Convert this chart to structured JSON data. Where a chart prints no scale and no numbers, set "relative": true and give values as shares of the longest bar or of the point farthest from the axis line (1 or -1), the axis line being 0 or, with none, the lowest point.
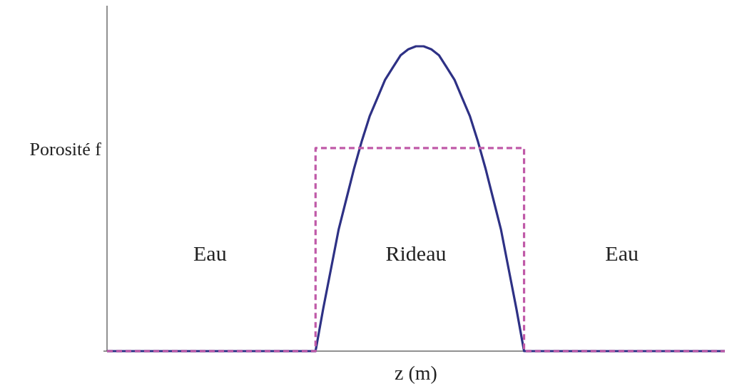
{
  "chart_data": {
    "type": "line",
    "relative": true,
    "xlabel": "z (m)",
    "ylabel": "Porosité f",
    "categories": [
      null,
      null,
      null,
      null,
      null,
      null,
      null,
      null,
      null,
      null,
      null,
      null,
      null,
      null,
      null,
      null,
      null,
      null,
      null,
      null,
      null,
      null,
      null,
      null,
      null,
      null,
      null,
      null,
      null,
      null,
      null,
      null,
      null,
      null,
      null,
      null,
      null,
      null,
      null,
      null,
      null,
      null,
      null,
      null,
      null,
      null,
      null,
      null,
      null,
      null,
      null,
      null,
      null,
      null,
      null,
      null,
      null,
      null,
      null,
      null,
      null,
      null,
      null,
      null,
      null,
      null,
      null,
      null,
      null,
      null,
      null,
      null,
      null,
      null,
      null,
      null,
      null,
      null,
      null,
      null,
      null
    ],
    "series": [
      {
        "color": "#2e3185",
        "line_style": "solid",
        "values": [
          0,
          0,
          0,
          0,
          0,
          0,
          0,
          0,
          0,
          0,
          0,
          0,
          0,
          0,
          0,
          0,
          0,
          0,
          0,
          0,
          0,
          0,
          0,
          0,
          0,
          0,
          0,
          0,
          0.14,
          0.27,
          0.4,
          0.5,
          0.6,
          0.69,
          0.77,
          0.83,
          0.89,
          0.93,
          0.97,
          0.99,
          1.0,
          1.0,
          0.99,
          0.97,
          0.93,
          0.89,
          0.83,
          0.77,
          0.69,
          0.6,
          0.5,
          0.4,
          0.27,
          0.14,
          0,
          0,
          0,
          0,
          0,
          0,
          0,
          0,
          0,
          0,
          0,
          0,
          0,
          0,
          0,
          0,
          0,
          0,
          0,
          0,
          0,
          0,
          0,
          0,
          0,
          0,
          0
        ]
      },
      {
        "type": "step",
        "color": "#c05aa8",
        "line_style": "dashed",
        "values": [
          0,
          0,
          0,
          0,
          0,
          0,
          0,
          0,
          0,
          0,
          0,
          0,
          0,
          0,
          0,
          0,
          0,
          0,
          0,
          0,
          0,
          0,
          0,
          0,
          0,
          0,
          0,
          0.666,
          0.666,
          0.666,
          0.666,
          0.666,
          0.666,
          0.666,
          0.666,
          0.666,
          0.666,
          0.666,
          0.666,
          0.666,
          0.666,
          0.666,
          0.666,
          0.666,
          0.666,
          0.666,
          0.666,
          0.666,
          0.666,
          0.666,
          0.666,
          0.666,
          0.666,
          0.666,
          0,
          0,
          0,
          0,
          0,
          0,
          0,
          0,
          0,
          0,
          0,
          0,
          0,
          0,
          0,
          0,
          0,
          0,
          0,
          0,
          0,
          0,
          0,
          0,
          0,
          0,
          0
        ]
      }
    ],
    "annotations": [
      "Eau",
      "Rideau",
      "Eau"
    ]
  }
}
